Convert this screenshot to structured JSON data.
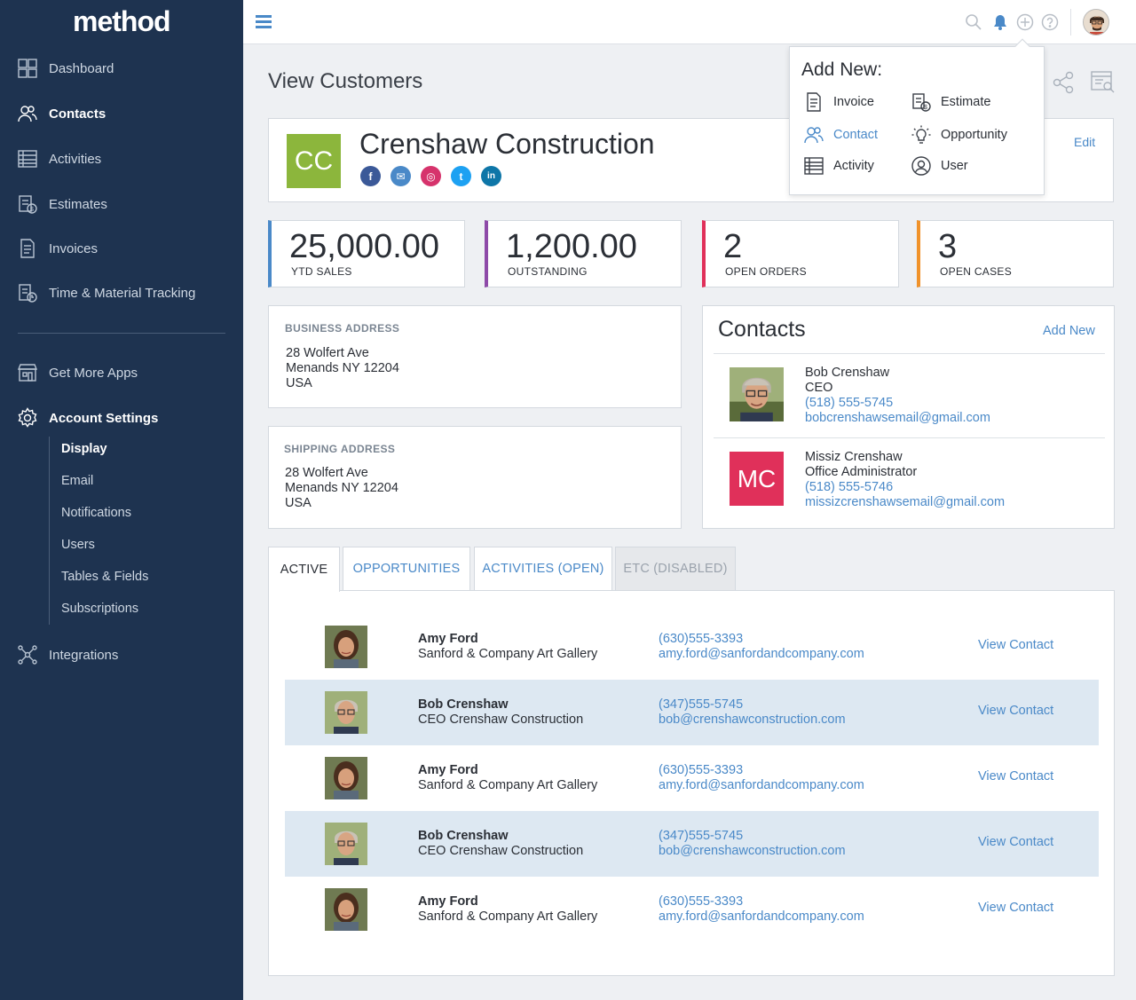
{
  "app": {
    "logo": "method"
  },
  "sidebar": {
    "items": [
      {
        "label": "Dashboard",
        "icon": "dashboard-icon"
      },
      {
        "label": "Contacts",
        "icon": "contacts-icon"
      },
      {
        "label": "Activities",
        "icon": "activities-icon"
      },
      {
        "label": "Estimates",
        "icon": "estimates-icon"
      },
      {
        "label": "Invoices",
        "icon": "invoices-icon"
      },
      {
        "label": "Time & Material Tracking",
        "icon": "time-tracking-icon"
      },
      {
        "label": "Get More Apps",
        "icon": "store-icon"
      },
      {
        "label": "Account Settings",
        "icon": "gear-icon"
      },
      {
        "label": "Integrations",
        "icon": "integrations-icon"
      }
    ],
    "sub_items": [
      "Display",
      "Email",
      "Notifications",
      "Users",
      "Tables & Fields",
      "Subscriptions"
    ]
  },
  "page": {
    "title": "View Customers"
  },
  "customer": {
    "initials": "CC",
    "name": "Crenshaw Construction",
    "edit_label": "Edit",
    "socials": [
      "f",
      "✉",
      "◎",
      "t",
      "in"
    ]
  },
  "stats": [
    {
      "value": "25,000.00",
      "label": "YTD SALES",
      "color": "#4a89c8"
    },
    {
      "value": "1,200.00",
      "label": "OUTSTANDING",
      "color": "#8e4aa8"
    },
    {
      "value": "2",
      "label": "OPEN ORDERS",
      "color": "#e0305a"
    },
    {
      "value": "3",
      "label": "OPEN CASES",
      "color": "#f0922a"
    }
  ],
  "business_address": {
    "title": "BUSINESS ADDRESS",
    "lines": [
      "28 Wolfert Ave",
      "Menands NY 12204",
      "USA"
    ]
  },
  "shipping_address": {
    "title": "SHIPPING ADDRESS",
    "lines": [
      "28 Wolfert Ave",
      "Menands NY 12204",
      "USA"
    ]
  },
  "contacts_panel": {
    "title": "Contacts",
    "add_new": "Add New",
    "people": [
      {
        "name": "Bob Crenshaw",
        "role": "CEO",
        "phone": "(518) 555-5745",
        "email": "bobcrenshawsemail@gmail.com"
      },
      {
        "initials": "MC",
        "name": "Missiz Crenshaw",
        "role": "Office Administrator",
        "phone": "(518) 555-5746",
        "email": "missizcrenshawsemail@gmail.com"
      }
    ]
  },
  "tabs": [
    {
      "label": "ACTIVE"
    },
    {
      "label": "OPPORTUNITIES"
    },
    {
      "label": "ACTIVITIES (OPEN)"
    },
    {
      "label": "ETC (DISABLED)"
    }
  ],
  "rows": [
    {
      "name": "Amy Ford",
      "sub": "Sanford & Company Art Gallery",
      "phone": "(630)555-3393",
      "email": "amy.ford@sanfordandcompany.com",
      "action": "View Contact"
    },
    {
      "name": "Bob Crenshaw",
      "sub": "CEO Crenshaw Construction",
      "phone": "(347)555-5745",
      "email": "bob@crenshawconstruction.com",
      "action": "View Contact"
    },
    {
      "name": "Amy Ford",
      "sub": "Sanford & Company Art Gallery",
      "phone": "(630)555-3393",
      "email": "amy.ford@sanfordandcompany.com",
      "action": "View Contact"
    },
    {
      "name": "Bob Crenshaw",
      "sub": "CEO Crenshaw Construction",
      "phone": "(347)555-5745",
      "email": "bob@crenshawconstruction.com",
      "action": "View Contact"
    },
    {
      "name": "Amy Ford",
      "sub": "Sanford & Company Art Gallery",
      "phone": "(630)555-3393",
      "email": "amy.ford@sanfordandcompany.com",
      "action": "View Contact"
    }
  ],
  "add_new_menu": {
    "title": "Add New:",
    "items": [
      {
        "label": "Invoice",
        "icon": "invoice-icon"
      },
      {
        "label": "Estimate",
        "icon": "estimate-icon"
      },
      {
        "label": "Contact",
        "icon": "contact-icon"
      },
      {
        "label": "Opportunity",
        "icon": "lightbulb-icon"
      },
      {
        "label": "Activity",
        "icon": "activity-icon"
      },
      {
        "label": "User",
        "icon": "user-icon"
      }
    ]
  },
  "colors": {
    "sidebar_bg": "#1e3350",
    "accent": "#4a89c8",
    "customer_badge": "#8cb63c",
    "contact_badge": "#e0305a",
    "row_shade": "#dde8f2"
  }
}
